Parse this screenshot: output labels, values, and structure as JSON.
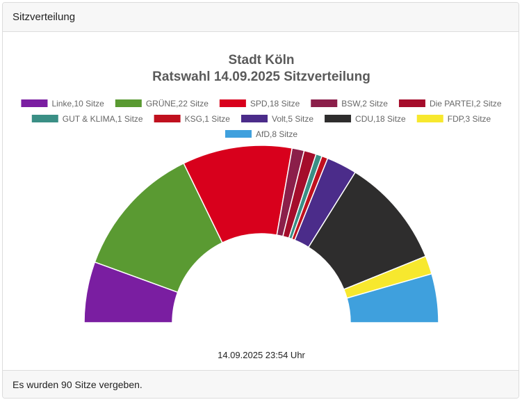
{
  "header": {
    "title": "Sitzverteilung"
  },
  "footer": {
    "text": "Es wurden 90 Sitze vergeben."
  },
  "chart_data": {
    "type": "pie",
    "variant": "half-doughnut (parliament)",
    "title": [
      "Stadt Köln",
      "Ratswahl 14.09.2025 Sitzverteilung"
    ],
    "legend_position": "top",
    "subtitle": "14.09.2025 23:54 Uhr",
    "total_seats": 90,
    "series": [
      {
        "name": "Linke",
        "value": 10,
        "label": "Linke,10 Sitze",
        "color": "#7a1ea1"
      },
      {
        "name": "GRÜNE",
        "value": 22,
        "label": "GRÜNE,22 Sitze",
        "color": "#5a9a32"
      },
      {
        "name": "SPD",
        "value": 18,
        "label": "SPD,18 Sitze",
        "color": "#d8001c"
      },
      {
        "name": "BSW",
        "value": 2,
        "label": "BSW,2 Sitze",
        "color": "#8b1f4a"
      },
      {
        "name": "Die PARTEI",
        "value": 2,
        "label": "Die PARTEI,2 Sitze",
        "color": "#a50d2b"
      },
      {
        "name": "GUT & KLIMA",
        "value": 1,
        "label": "GUT & KLIMA,1 Sitze",
        "color": "#3a8f85"
      },
      {
        "name": "KSG",
        "value": 1,
        "label": "KSG,1 Sitze",
        "color": "#c0101e"
      },
      {
        "name": "Volt",
        "value": 5,
        "label": "Volt,5 Sitze",
        "color": "#4b2c8a"
      },
      {
        "name": "CDU",
        "value": 18,
        "label": "CDU,18 Sitze",
        "color": "#2e2d2d"
      },
      {
        "name": "FDP",
        "value": 3,
        "label": "FDP,3 Sitze",
        "color": "#f7e82e"
      },
      {
        "name": "AfD",
        "value": 8,
        "label": "AfD,8 Sitze",
        "color": "#3fa0dd"
      }
    ]
  }
}
